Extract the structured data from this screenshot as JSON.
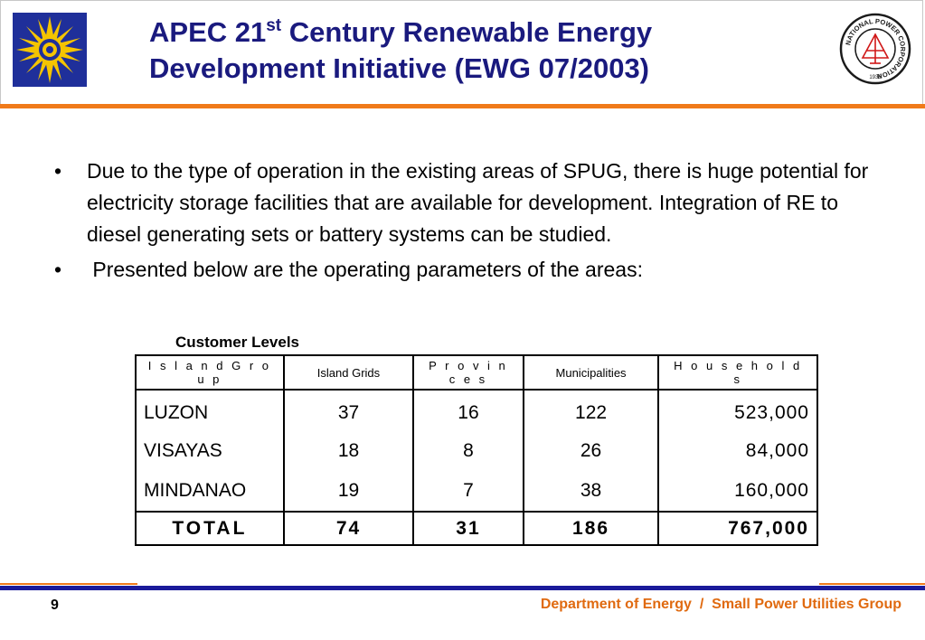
{
  "header": {
    "title_line1_prefix": "APEC 21",
    "title_sup": "st",
    "title_line1_suffix": " Century Renewable Energy",
    "title_line2": "Development Initiative (EWG 07/2003)",
    "left_logo_icon": "doe-seal-icon",
    "right_logo_icon": "npc-seal-icon",
    "right_logo_text": "NATIONAL POWER CORPORATION",
    "right_logo_year": "1936"
  },
  "bullets": [
    {
      "marker": "•",
      "text": "Due to the type of operation in the existing areas of SPUG, there is huge potential for electricity storage facilities that are available for development.  Integration of RE to diesel generating sets or battery systems can be studied."
    },
    {
      "marker": "•",
      "text": " Presented below are the operating parameters of the areas:"
    }
  ],
  "table": {
    "caption": "Customer Levels",
    "headers": [
      "I s l a n d  G r o u p",
      "Island Grids",
      "P r o v i n c e s",
      "Municipalities",
      "H o u s e h o l d s"
    ],
    "rows": [
      [
        "LUZON",
        "37",
        "16",
        "122",
        "523,000"
      ],
      [
        "VISAYAS",
        "18",
        "8",
        "26",
        "84,000"
      ],
      [
        "MINDANAO",
        "19",
        "7",
        "38",
        "160,000"
      ]
    ],
    "total": [
      "TOTAL",
      "74",
      "31",
      "186",
      "767,000"
    ]
  },
  "footer": {
    "page_number": "9",
    "text": "Department of Energy  /  Small Power Utilities Group"
  },
  "colors": {
    "title": "#1a1a7e",
    "accent_orange": "#f07a1a",
    "footer_blue": "#1a1a9a",
    "footer_text": "#e06a10"
  }
}
